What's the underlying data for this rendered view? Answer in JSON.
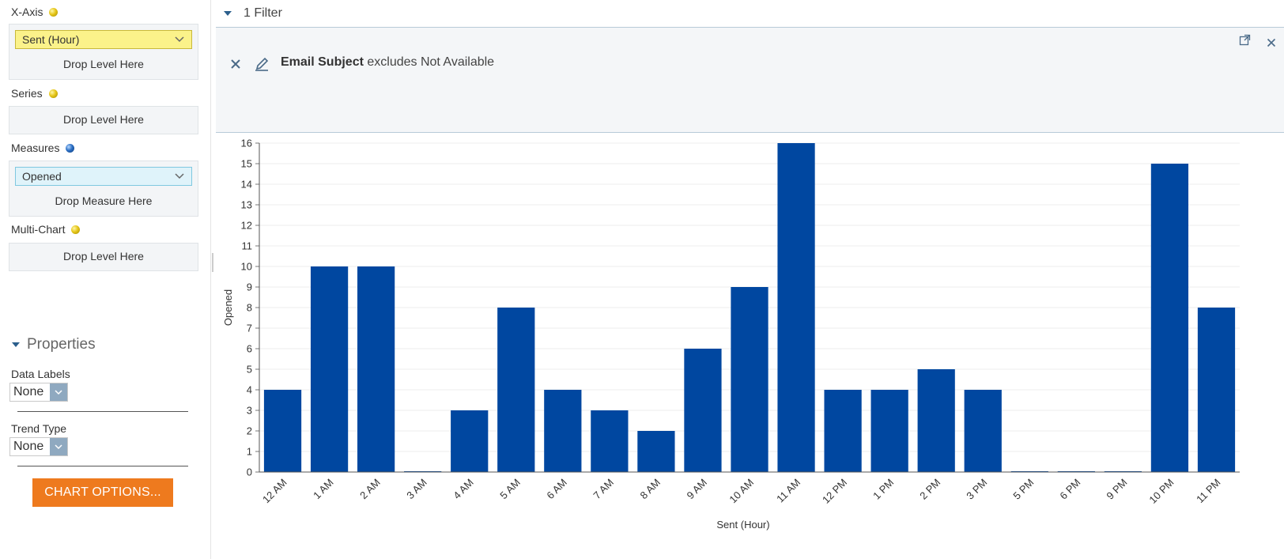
{
  "left_panel": {
    "x_axis": {
      "label": "X-Axis",
      "pill": "Sent (Hour)",
      "drop": "Drop Level Here"
    },
    "series": {
      "label": "Series",
      "drop": "Drop Level Here"
    },
    "measures": {
      "label": "Measures",
      "pill": "Opened",
      "drop": "Drop Measure Here"
    },
    "multi_chart": {
      "label": "Multi-Chart",
      "drop": "Drop Level Here"
    },
    "properties": {
      "title": "Properties",
      "data_labels": {
        "label": "Data Labels",
        "value": "None"
      },
      "trend_type": {
        "label": "Trend Type",
        "value": "None"
      }
    },
    "chart_options_button": "CHART OPTIONS..."
  },
  "filter": {
    "toggle_label": "1 Filter",
    "field": "Email Subject",
    "condition": "excludes Not Available"
  },
  "colors": {
    "bar": "#0047a0",
    "accent_button": "#ee7a1e"
  },
  "icons": {
    "collapse": "caret-down-icon",
    "remove": "close-icon",
    "edit": "pencil-icon",
    "popout": "popout-icon",
    "panel_close": "close-icon"
  },
  "chart_data": {
    "type": "bar",
    "xlabel": "Sent (Hour)",
    "ylabel": "Opened",
    "ylim": [
      0,
      16
    ],
    "grid": true,
    "categories": [
      "12 AM",
      "1 AM",
      "2 AM",
      "3 AM",
      "4 AM",
      "5 AM",
      "6 AM",
      "7 AM",
      "8 AM",
      "9 AM",
      "10 AM",
      "11 AM",
      "12 PM",
      "1 PM",
      "2 PM",
      "3 PM",
      "5 PM",
      "6 PM",
      "9 PM",
      "10 PM",
      "11 PM"
    ],
    "values": [
      4,
      10,
      10,
      0,
      3,
      8,
      4,
      3,
      2,
      6,
      9,
      16,
      4,
      4,
      5,
      4,
      0,
      0,
      0,
      15,
      8
    ]
  }
}
